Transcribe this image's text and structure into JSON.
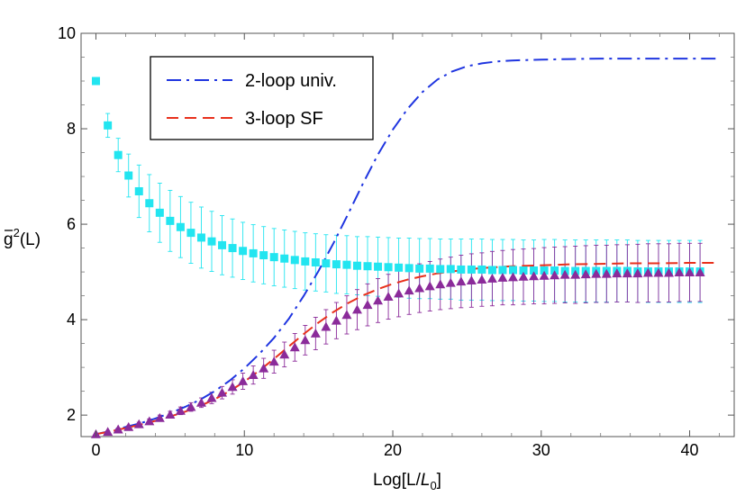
{
  "chart_data": {
    "type": "scatter",
    "xlabel": "Log[L/L0]",
    "xlabel_parts": {
      "pre": "Log[L/",
      "italic": "L",
      "sub": "0",
      "post": "]"
    },
    "ylabel": "ḡ²(L)",
    "ylabel_parts": {
      "base": "g",
      "sup": "2",
      "post": "(L)"
    },
    "xlim": [
      -1,
      43
    ],
    "ylim": [
      1.55,
      10
    ],
    "xticks": [
      0,
      10,
      20,
      30,
      40
    ],
    "yticks": [
      2,
      4,
      6,
      8,
      10
    ],
    "legend_position": "top-left",
    "grid": false,
    "series": [
      {
        "name": "2-loop univ.",
        "kind": "line",
        "style": "dash-dot",
        "color": "#1f35e0",
        "x": [
          0,
          1,
          2,
          3,
          4,
          5,
          6,
          7,
          8,
          9,
          10,
          11,
          12,
          13,
          14,
          15,
          16,
          17,
          18,
          19,
          20,
          21,
          22,
          23,
          24,
          25,
          26,
          27,
          28,
          29,
          30,
          32,
          34,
          36,
          38,
          40,
          42
        ],
        "y": [
          1.6,
          1.67,
          1.75,
          1.83,
          1.93,
          2.04,
          2.17,
          2.32,
          2.5,
          2.72,
          2.98,
          3.28,
          3.62,
          4.02,
          4.5,
          5.02,
          5.6,
          6.22,
          6.86,
          7.46,
          7.98,
          8.42,
          8.77,
          9.03,
          9.2,
          9.31,
          9.37,
          9.41,
          9.43,
          9.44,
          9.45,
          9.46,
          9.47,
          9.47,
          9.47,
          9.47,
          9.47
        ]
      },
      {
        "name": "3-loop SF",
        "kind": "line",
        "style": "dashed",
        "color": "#e8301c",
        "x": [
          0,
          1,
          2,
          3,
          4,
          5,
          6,
          7,
          8,
          9,
          10,
          11,
          12,
          13,
          14,
          15,
          16,
          17,
          18,
          19,
          20,
          21,
          22,
          23,
          24,
          25,
          26,
          27,
          28,
          29,
          30,
          32,
          34,
          36,
          38,
          40,
          42
        ],
        "y": [
          1.6,
          1.66,
          1.73,
          1.8,
          1.88,
          1.97,
          2.07,
          2.19,
          2.33,
          2.5,
          2.7,
          2.93,
          3.18,
          3.44,
          3.7,
          3.94,
          4.16,
          4.35,
          4.51,
          4.64,
          4.75,
          4.84,
          4.91,
          4.97,
          5.01,
          5.05,
          5.08,
          5.1,
          5.12,
          5.13,
          5.14,
          5.16,
          5.17,
          5.18,
          5.18,
          5.19,
          5.19
        ]
      },
      {
        "name": "",
        "kind": "points",
        "marker": "square",
        "color": "#22e5f0",
        "x": [
          0,
          0.8,
          1.5,
          2.2,
          2.9,
          3.6,
          4.3,
          5,
          5.7,
          6.4,
          7.1,
          7.8,
          8.5,
          9.2,
          9.9,
          10.6,
          11.3,
          12,
          12.7,
          13.4,
          14.1,
          14.8,
          15.5,
          16.2,
          16.9,
          17.6,
          18.3,
          19,
          19.7,
          20.4,
          21.1,
          21.8,
          22.5,
          23.2,
          23.9,
          24.6,
          25.3,
          26,
          26.7,
          27.4,
          28.1,
          28.8,
          29.5,
          30.2,
          30.9,
          31.6,
          32.3,
          33,
          33.7,
          34.4,
          35.1,
          35.8,
          36.5,
          37.2,
          37.9,
          38.6,
          39.3,
          40,
          40.7
        ],
        "y": [
          9.0,
          8.07,
          7.45,
          7.02,
          6.69,
          6.44,
          6.24,
          6.07,
          5.94,
          5.82,
          5.72,
          5.64,
          5.56,
          5.5,
          5.44,
          5.39,
          5.35,
          5.31,
          5.28,
          5.25,
          5.22,
          5.2,
          5.18,
          5.16,
          5.15,
          5.13,
          5.12,
          5.11,
          5.1,
          5.09,
          5.08,
          5.07,
          5.07,
          5.06,
          5.06,
          5.05,
          5.05,
          5.05,
          5.04,
          5.04,
          5.04,
          5.03,
          5.03,
          5.03,
          5.03,
          5.02,
          5.02,
          5.02,
          5.02,
          5.02,
          5.02,
          5.02,
          5.01,
          5.01,
          5.01,
          5.01,
          5.01,
          5.01,
          5.01
        ],
        "yerr": [
          0,
          0.25,
          0.35,
          0.45,
          0.55,
          0.6,
          0.62,
          0.64,
          0.64,
          0.64,
          0.64,
          0.63,
          0.62,
          0.61,
          0.6,
          0.6,
          0.6,
          0.6,
          0.6,
          0.6,
          0.6,
          0.6,
          0.6,
          0.61,
          0.61,
          0.61,
          0.62,
          0.62,
          0.62,
          0.62,
          0.63,
          0.63,
          0.63,
          0.63,
          0.63,
          0.64,
          0.64,
          0.64,
          0.64,
          0.64,
          0.64,
          0.64,
          0.64,
          0.65,
          0.65,
          0.65,
          0.65,
          0.65,
          0.65,
          0.65,
          0.65,
          0.65,
          0.65,
          0.65,
          0.65,
          0.65,
          0.65,
          0.65,
          0.65
        ]
      },
      {
        "name": "",
        "kind": "points",
        "marker": "triangle",
        "color": "#8b2b9a",
        "x": [
          0,
          0.8,
          1.5,
          2.2,
          2.9,
          3.6,
          4.3,
          5,
          5.7,
          6.4,
          7.1,
          7.8,
          8.5,
          9.2,
          9.9,
          10.6,
          11.3,
          12,
          12.7,
          13.4,
          14.1,
          14.8,
          15.5,
          16.2,
          16.9,
          17.6,
          18.3,
          19,
          19.7,
          20.4,
          21.1,
          21.8,
          22.5,
          23.2,
          23.9,
          24.6,
          25.3,
          26,
          26.7,
          27.4,
          28.1,
          28.8,
          29.5,
          30.2,
          30.9,
          31.6,
          32.3,
          33,
          33.7,
          34.4,
          35.1,
          35.8,
          36.5,
          37.2,
          37.9,
          38.6,
          39.3,
          40,
          40.7
        ],
        "y": [
          1.6,
          1.65,
          1.7,
          1.75,
          1.81,
          1.87,
          1.94,
          2.01,
          2.09,
          2.17,
          2.26,
          2.36,
          2.47,
          2.59,
          2.71,
          2.84,
          2.98,
          3.12,
          3.27,
          3.42,
          3.57,
          3.71,
          3.85,
          3.98,
          4.1,
          4.21,
          4.31,
          4.4,
          4.48,
          4.55,
          4.61,
          4.66,
          4.7,
          4.74,
          4.77,
          4.8,
          4.82,
          4.84,
          4.86,
          4.88,
          4.89,
          4.9,
          4.91,
          4.92,
          4.93,
          4.94,
          4.94,
          4.95,
          4.96,
          4.96,
          4.97,
          4.97,
          4.97,
          4.98,
          4.98,
          4.98,
          4.99,
          4.99,
          4.99
        ],
        "yerr": [
          0,
          0.02,
          0.03,
          0.03,
          0.04,
          0.05,
          0.06,
          0.07,
          0.08,
          0.09,
          0.1,
          0.12,
          0.13,
          0.15,
          0.17,
          0.19,
          0.21,
          0.24,
          0.26,
          0.29,
          0.31,
          0.34,
          0.36,
          0.38,
          0.4,
          0.42,
          0.44,
          0.46,
          0.47,
          0.49,
          0.5,
          0.51,
          0.52,
          0.53,
          0.54,
          0.55,
          0.56,
          0.56,
          0.57,
          0.57,
          0.58,
          0.58,
          0.58,
          0.59,
          0.59,
          0.59,
          0.6,
          0.6,
          0.6,
          0.6,
          0.6,
          0.6,
          0.61,
          0.61,
          0.61,
          0.61,
          0.61,
          0.61,
          0.61
        ]
      }
    ]
  }
}
